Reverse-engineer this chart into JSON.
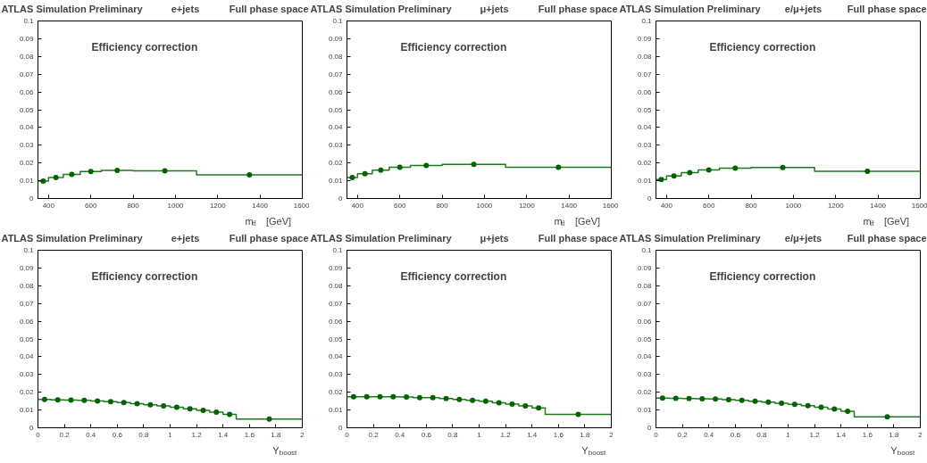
{
  "chart_data": [
    {
      "type": "histogram",
      "title": "ATLAS Simulation Preliminary",
      "subtitle": "e+jets",
      "annotations": [
        "Full phase space",
        "Efficiency correction"
      ],
      "xlabel": "m$_{tt̄}$ [GeV]",
      "bins": [
        350,
        400,
        470,
        550,
        650,
        800,
        1100,
        1600
      ],
      "values": [
        0.0098,
        0.0118,
        0.0136,
        0.0152,
        0.0158,
        0.0156,
        0.0133
      ],
      "color": "#1f7a1f",
      "series": [
        {
          "type": "scatter",
          "marker": "circle",
          "color": "#006400",
          "x": [
            375,
            435,
            510,
            600,
            725,
            950,
            1350
          ],
          "values": [
            0.0098,
            0.0118,
            0.0136,
            0.0152,
            0.0158,
            0.0156,
            0.0133
          ]
        }
      ],
      "xlim": [
        350,
        1600
      ],
      "xticks": [
        400,
        600,
        800,
        1000,
        1200,
        1400,
        1600
      ],
      "ylim": [
        0,
        0.1
      ],
      "yticks": [
        0,
        0.01,
        0.02,
        0.03,
        0.04,
        0.05,
        0.06,
        0.07,
        0.08,
        0.09,
        0.1
      ],
      "grid": false
    },
    {
      "type": "histogram",
      "title": "ATLAS Simulation Preliminary",
      "subtitle": "μ+jets",
      "annotations": [
        "Full phase space",
        "Efficiency correction"
      ],
      "xlabel": "m$_{tt̄}$ [GeV]",
      "bins": [
        350,
        400,
        470,
        550,
        650,
        800,
        1100,
        1600
      ],
      "values": [
        0.0118,
        0.014,
        0.016,
        0.0176,
        0.0186,
        0.0192,
        0.0176
      ],
      "color": "#1f7a1f",
      "series": [
        {
          "type": "scatter",
          "marker": "circle",
          "color": "#006400",
          "x": [
            375,
            435,
            510,
            600,
            725,
            950,
            1350
          ],
          "values": [
            0.0118,
            0.014,
            0.016,
            0.0176,
            0.0186,
            0.0192,
            0.0176
          ]
        }
      ],
      "xlim": [
        350,
        1600
      ],
      "xticks": [
        400,
        600,
        800,
        1000,
        1200,
        1400,
        1600
      ],
      "ylim": [
        0,
        0.1
      ],
      "yticks": [
        0,
        0.01,
        0.02,
        0.03,
        0.04,
        0.05,
        0.06,
        0.07,
        0.08,
        0.09,
        0.1
      ],
      "grid": false
    },
    {
      "type": "histogram",
      "title": "ATLAS Simulation Preliminary",
      "subtitle": "e/μ+jets",
      "annotations": [
        "Full phase space",
        "Efficiency correction"
      ],
      "xlabel": "m$_{tt̄}$ [GeV]",
      "bins": [
        350,
        400,
        470,
        550,
        650,
        800,
        1100,
        1600
      ],
      "values": [
        0.0107,
        0.0127,
        0.0146,
        0.0161,
        0.0171,
        0.0175,
        0.0153
      ],
      "color": "#1f7a1f",
      "series": [
        {
          "type": "scatter",
          "marker": "circle",
          "color": "#006400",
          "x": [
            375,
            435,
            510,
            600,
            725,
            950,
            1350
          ],
          "values": [
            0.0107,
            0.0127,
            0.0146,
            0.0161,
            0.0171,
            0.0175,
            0.0153
          ]
        }
      ],
      "xlim": [
        350,
        1600
      ],
      "xticks": [
        400,
        600,
        800,
        1000,
        1200,
        1400,
        1600
      ],
      "ylim": [
        0,
        0.1
      ],
      "yticks": [
        0,
        0.01,
        0.02,
        0.03,
        0.04,
        0.05,
        0.06,
        0.07,
        0.08,
        0.09,
        0.1
      ],
      "grid": false
    },
    {
      "type": "histogram",
      "title": "ATLAS Simulation Preliminary",
      "subtitle": "e+jets",
      "annotations": [
        "Full phase space",
        "Efficiency correction"
      ],
      "xlabel": "Y$_{boost}$",
      "bins": [
        0,
        0.1,
        0.2,
        0.3,
        0.4,
        0.5,
        0.6,
        0.7,
        0.8,
        0.9,
        1.0,
        1.1,
        1.2,
        1.3,
        1.4,
        1.5,
        2.0
      ],
      "values": [
        0.0159,
        0.0157,
        0.0156,
        0.0154,
        0.0151,
        0.0147,
        0.0142,
        0.0136,
        0.013,
        0.0123,
        0.0115,
        0.0107,
        0.0098,
        0.0088,
        0.0076,
        0.0049
      ],
      "color": "#1f7a1f",
      "series": [
        {
          "type": "scatter",
          "marker": "circle",
          "color": "#006400",
          "x": [
            0.05,
            0.15,
            0.25,
            0.35,
            0.45,
            0.55,
            0.65,
            0.75,
            0.85,
            0.95,
            1.05,
            1.15,
            1.25,
            1.35,
            1.45,
            1.75
          ],
          "values": [
            0.0159,
            0.0157,
            0.0156,
            0.0154,
            0.0151,
            0.0147,
            0.0142,
            0.0136,
            0.013,
            0.0123,
            0.0115,
            0.0107,
            0.0098,
            0.0088,
            0.0076,
            0.0049
          ]
        }
      ],
      "xlim": [
        0,
        2
      ],
      "xticks": [
        0,
        0.2,
        0.4,
        0.6,
        0.8,
        1,
        1.2,
        1.4,
        1.6,
        1.8,
        2
      ],
      "ylim": [
        0,
        0.1
      ],
      "yticks": [
        0,
        0.01,
        0.02,
        0.03,
        0.04,
        0.05,
        0.06,
        0.07,
        0.08,
        0.09,
        0.1
      ],
      "grid": false
    },
    {
      "type": "histogram",
      "title": "ATLAS Simulation Preliminary",
      "subtitle": "μ+jets",
      "annotations": [
        "Full phase space",
        "Efficiency correction"
      ],
      "xlabel": "Y$_{boost}$",
      "bins": [
        0,
        0.1,
        0.2,
        0.3,
        0.4,
        0.5,
        0.6,
        0.7,
        0.8,
        0.9,
        1.0,
        1.1,
        1.2,
        1.3,
        1.4,
        1.5,
        2.0
      ],
      "values": [
        0.0174,
        0.0174,
        0.0174,
        0.0174,
        0.0173,
        0.017,
        0.0169,
        0.0165,
        0.016,
        0.0155,
        0.0149,
        0.0141,
        0.0133,
        0.0123,
        0.0112,
        0.0076
      ],
      "color": "#1f7a1f",
      "series": [
        {
          "type": "scatter",
          "marker": "circle",
          "color": "#006400",
          "x": [
            0.05,
            0.15,
            0.25,
            0.35,
            0.45,
            0.55,
            0.65,
            0.75,
            0.85,
            0.95,
            1.05,
            1.15,
            1.25,
            1.35,
            1.45,
            1.75
          ],
          "values": [
            0.0174,
            0.0174,
            0.0174,
            0.0174,
            0.0173,
            0.017,
            0.0169,
            0.0165,
            0.016,
            0.0155,
            0.0149,
            0.0141,
            0.0133,
            0.0123,
            0.0112,
            0.0076
          ]
        }
      ],
      "xlim": [
        0,
        2
      ],
      "xticks": [
        0,
        0.2,
        0.4,
        0.6,
        0.8,
        1,
        1.2,
        1.4,
        1.6,
        1.8,
        2
      ],
      "ylim": [
        0,
        0.1
      ],
      "yticks": [
        0,
        0.01,
        0.02,
        0.03,
        0.04,
        0.05,
        0.06,
        0.07,
        0.08,
        0.09,
        0.1
      ],
      "grid": false
    },
    {
      "type": "histogram",
      "title": "ATLAS Simulation Preliminary",
      "subtitle": "e/μ+jets",
      "annotations": [
        "Full phase space",
        "Efficiency correction"
      ],
      "xlabel": "Y$_{boost}$",
      "bins": [
        0,
        0.1,
        0.2,
        0.3,
        0.4,
        0.5,
        0.6,
        0.7,
        0.8,
        0.9,
        1.0,
        1.1,
        1.2,
        1.3,
        1.4,
        1.5,
        2.0
      ],
      "values": [
        0.0167,
        0.0166,
        0.0165,
        0.0163,
        0.0162,
        0.0158,
        0.0154,
        0.015,
        0.0145,
        0.0138,
        0.0132,
        0.0124,
        0.0115,
        0.0105,
        0.0093,
        0.0062
      ],
      "color": "#1f7a1f",
      "series": [
        {
          "type": "scatter",
          "marker": "circle",
          "color": "#006400",
          "x": [
            0.05,
            0.15,
            0.25,
            0.35,
            0.45,
            0.55,
            0.65,
            0.75,
            0.85,
            0.95,
            1.05,
            1.15,
            1.25,
            1.35,
            1.45,
            1.75
          ],
          "values": [
            0.0167,
            0.0166,
            0.0165,
            0.0163,
            0.0162,
            0.0158,
            0.0154,
            0.015,
            0.0145,
            0.0138,
            0.0132,
            0.0124,
            0.0115,
            0.0105,
            0.0093,
            0.0062
          ]
        }
      ],
      "xlim": [
        0,
        2
      ],
      "xticks": [
        0,
        0.2,
        0.4,
        0.6,
        0.8,
        1,
        1.2,
        1.4,
        1.6,
        1.8,
        2
      ],
      "ylim": [
        0,
        0.1
      ],
      "yticks": [
        0,
        0.01,
        0.02,
        0.03,
        0.04,
        0.05,
        0.06,
        0.07,
        0.08,
        0.09,
        0.1
      ],
      "grid": false
    }
  ]
}
